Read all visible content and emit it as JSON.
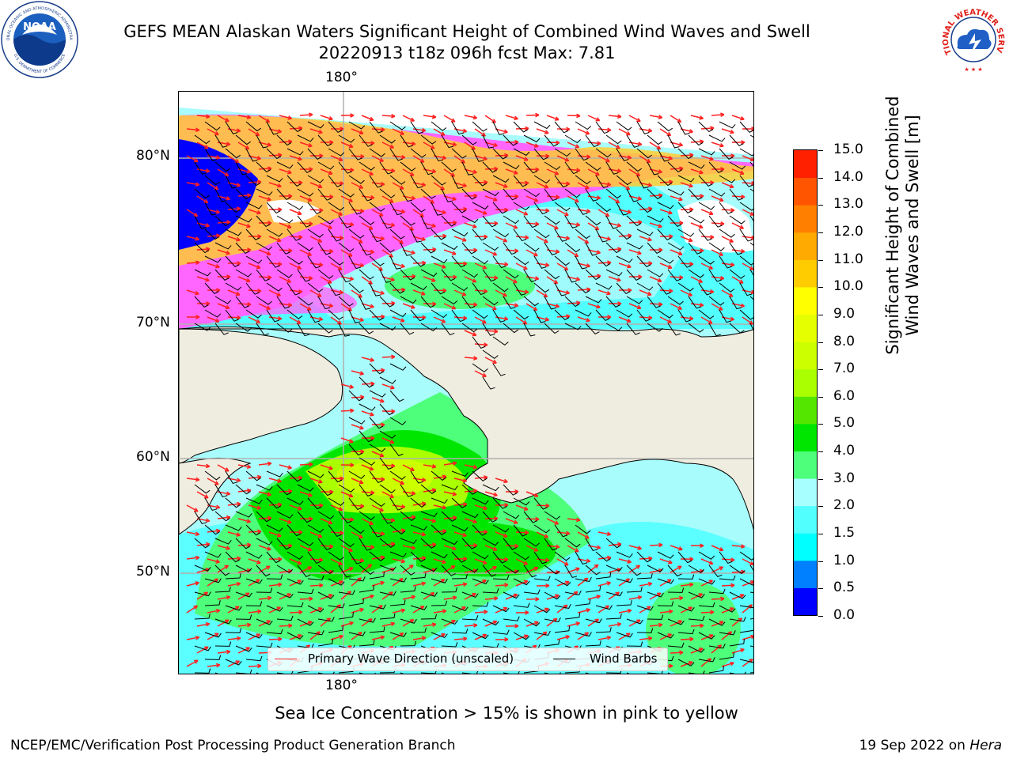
{
  "header": {
    "title_line1": "GEFS MEAN Alaskan Waters Significant Height of Combined Wind Waves and Swell",
    "title_line2": "20220913 t18z 096h fcst   Max: 7.81"
  },
  "logos": {
    "noaa_text": "NOAA",
    "noaa_ring_top": "NATIONAL OCEANIC AND ATMOSPHERIC ADMINISTRATION",
    "noaa_ring_bottom": "U.S. DEPARTMENT OF COMMERCE",
    "nws_ring": "NATIONAL WEATHER SERVICE"
  },
  "map": {
    "lon_label_top": "180°",
    "lon_label_bottom": "180°",
    "lat_labels": [
      "80°N",
      "70°N",
      "60°N",
      "50°N"
    ]
  },
  "legend": {
    "wave_direction": "Primary Wave Direction (unscaled)",
    "wind_barbs": "Wind Barbs"
  },
  "colorbar": {
    "title_line1": "Significant Height of Combined",
    "title_line2": "Wind Waves and Swell [m]",
    "ticks": [
      "0.0",
      "0.5",
      "1.0",
      "1.5",
      "2.0",
      "3.0",
      "4.0",
      "5.0",
      "6.0",
      "7.0",
      "8.0",
      "9.0",
      "10.0",
      "11.0",
      "12.0",
      "13.0",
      "14.0",
      "15.0"
    ],
    "colors": [
      "#0000ff",
      "#0080ff",
      "#00ffff",
      "#52ffff",
      "#a8ffff",
      "#4dff7a",
      "#00e600",
      "#55e600",
      "#aaff00",
      "#ccff00",
      "#e6ff00",
      "#ffff00",
      "#ffcc00",
      "#ffaa00",
      "#ff8000",
      "#ff5500",
      "#ff2000"
    ]
  },
  "colors": {
    "land": "#efeddf",
    "wave_arrow": "#ff2020",
    "wind_barb": "#000000",
    "grid": "#b0b0b0",
    "ice_pink": "#ff66ff",
    "ice_yellow": "#ffcc33",
    "ice_blue": "#0000ff"
  },
  "footnote": "Sea Ice Concentration > 15% is shown in pink to yellow",
  "footer": {
    "left": "NCEP/EMC/Verification Post Processing Product Generation Branch",
    "right_date": "19 Sep 2022 on",
    "right_host": "Hera"
  }
}
